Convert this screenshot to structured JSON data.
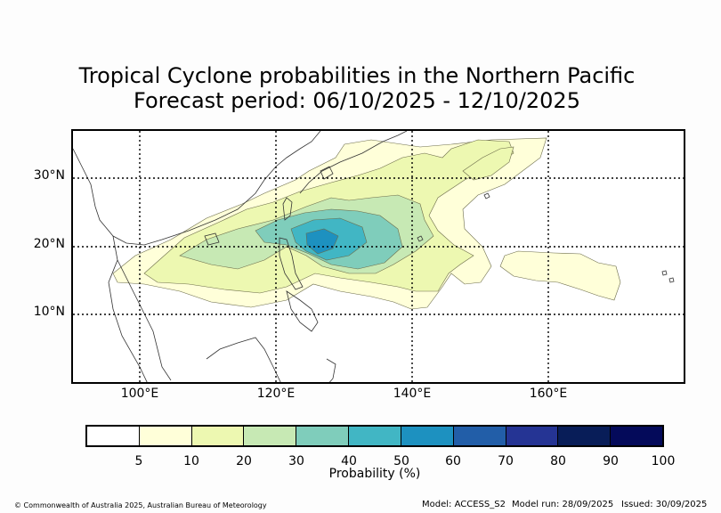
{
  "title": {
    "line1": "Tropical Cyclone probabilities in the Northern Pacific",
    "line2": "Forecast period: 06/10/2025 - 12/10/2025"
  },
  "map": {
    "lat_labels": [
      "30°N",
      "20°N",
      "10°N"
    ],
    "lon_labels": [
      "100°E",
      "120°E",
      "140°E",
      "160°E"
    ],
    "extent": {
      "lon_min": 90,
      "lon_max": 180,
      "lat_min": 0,
      "lat_max": 37
    },
    "gridlines": {
      "lons": [
        100,
        120,
        140,
        160
      ],
      "lats": [
        10,
        20,
        30
      ]
    }
  },
  "legend": {
    "ticks": [
      "5",
      "10",
      "20",
      "30",
      "40",
      "50",
      "60",
      "70",
      "80",
      "90",
      "100"
    ],
    "label": "Probability (%)",
    "colors": [
      "#ffffff",
      "#ffffd9",
      "#edf8b1",
      "#c7e9b4",
      "#7fcdbb",
      "#41b6c4",
      "#1d91c0",
      "#225ea8",
      "#253494",
      "#081d58",
      "#040a5a"
    ]
  },
  "footer": {
    "copyright": "© Commonwealth of Australia 2025, Australian Bureau of Meteorology",
    "model": "Model: ACCESS_S2",
    "model_run": "Model run: 28/09/2025",
    "issued": "Issued: 30/09/2025"
  }
}
